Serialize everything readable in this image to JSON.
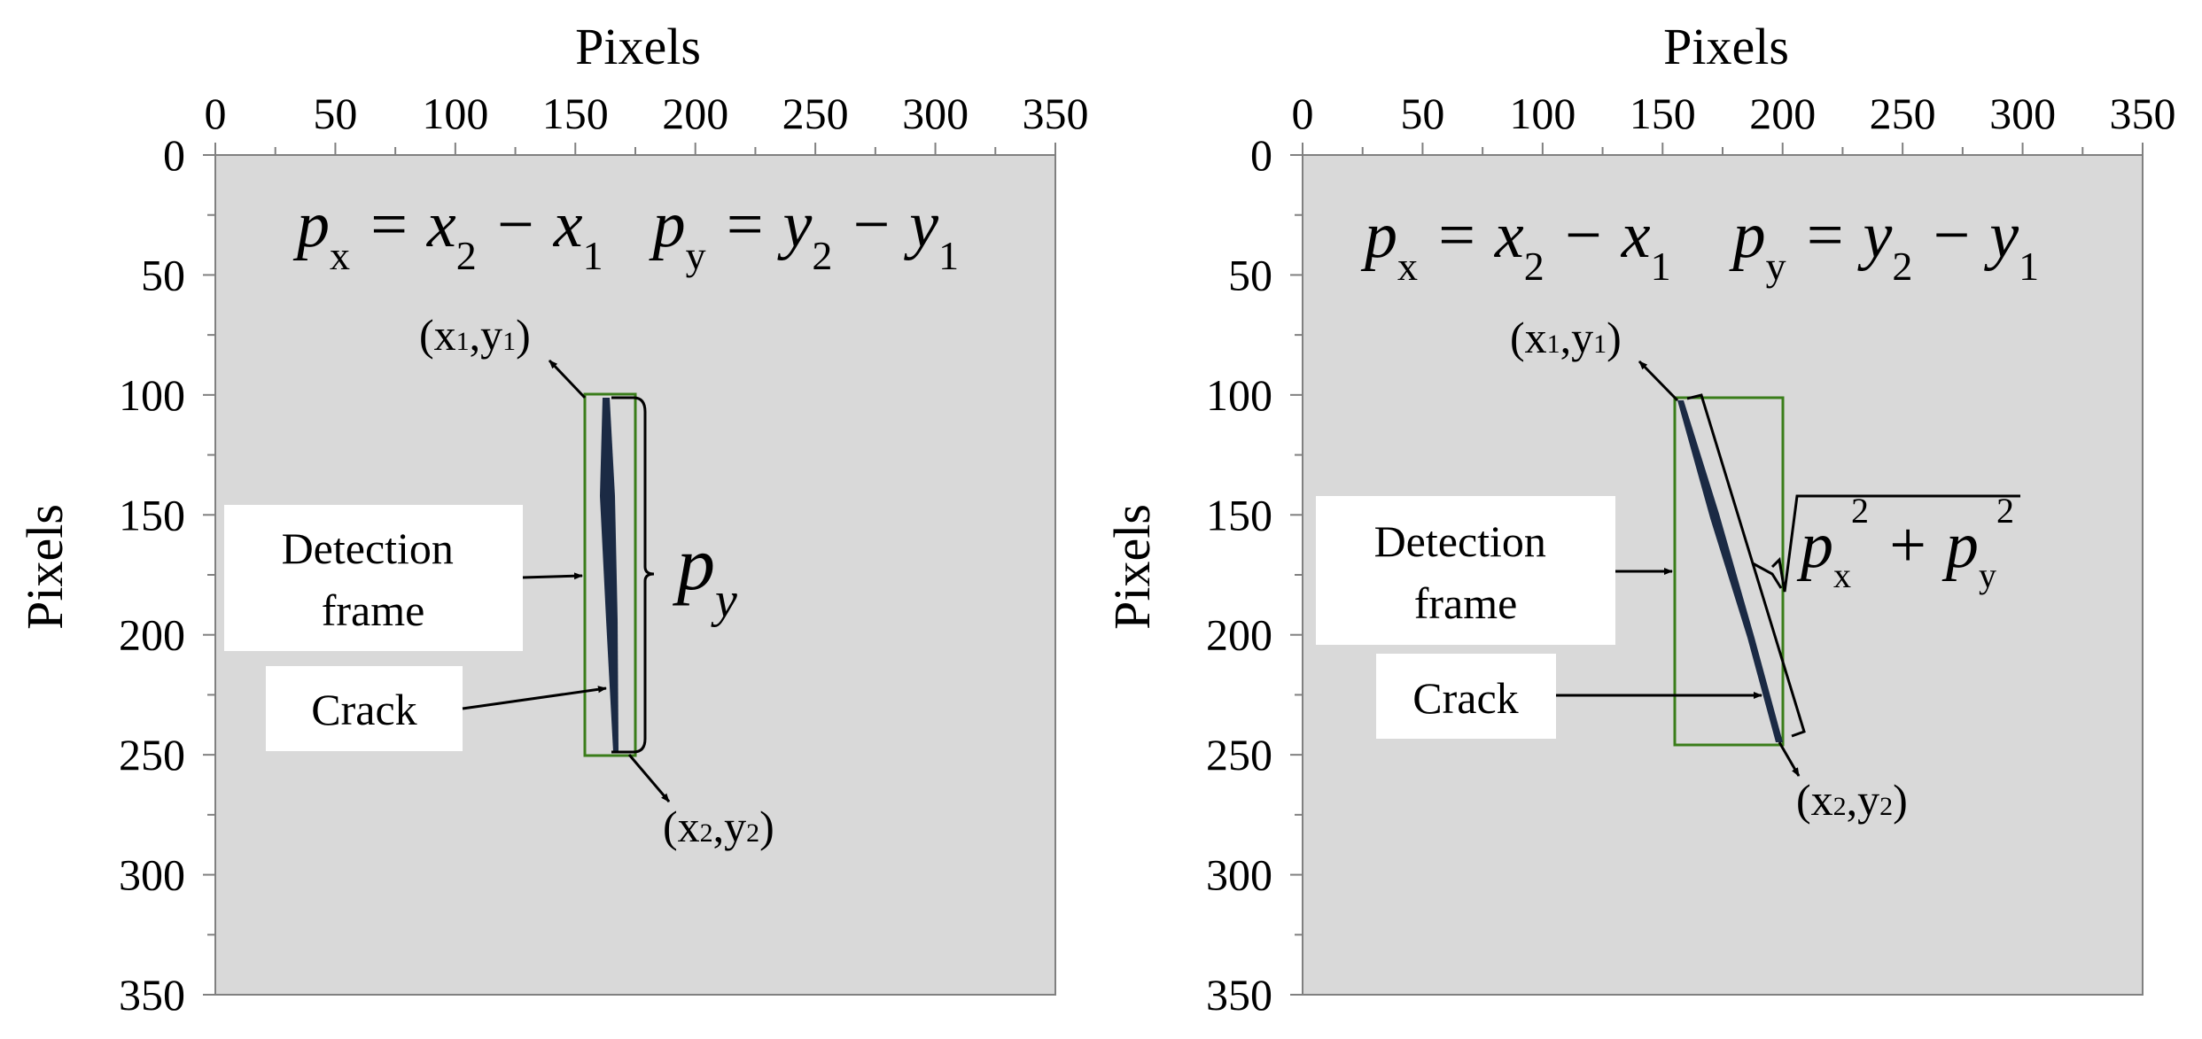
{
  "panels": [
    {
      "id": "left",
      "x_axis_label": "Pixels",
      "y_axis_label": "Pixels",
      "x_ticks": [
        0,
        50,
        100,
        150,
        200,
        250,
        300,
        350
      ],
      "y_ticks": [
        0,
        50,
        100,
        150,
        200,
        250,
        300,
        350
      ],
      "axis_range": [
        0,
        350
      ],
      "formula": {
        "px": "p",
        "px_sub": "x",
        "eq1": " = x",
        "sub2": "2",
        "minus": " − x",
        "sub1": "1",
        "py": "p",
        "py_sub": "y",
        "eq2": " = y",
        "sub2b": "2",
        "minusb": " − y",
        "sub1b": "1"
      },
      "start_label": {
        "open": "(x",
        "sub_a": "1",
        "comma": ",y",
        "sub_b": "1",
        "close": ")"
      },
      "end_label": {
        "open": "(x",
        "sub_a": "2",
        "comma": ",y",
        "sub_b": "2",
        "close": ")"
      },
      "detection_label": [
        "Detection",
        "frame"
      ],
      "crack_label": "Crack",
      "length_label": {
        "base": "p",
        "sub": "y"
      },
      "frame": {
        "x1": 155,
        "y1": 100,
        "x2": 175,
        "y2": 250
      },
      "crack": {
        "x1": 162,
        "y1": 101,
        "x2": 166,
        "y2": 249
      }
    },
    {
      "id": "right",
      "x_axis_label": "Pixels",
      "y_axis_label": "Pixels",
      "x_ticks": [
        0,
        50,
        100,
        150,
        200,
        250,
        300,
        350
      ],
      "y_ticks": [
        0,
        50,
        100,
        150,
        200,
        250,
        300,
        350
      ],
      "axis_range": [
        0,
        350
      ],
      "formula": {
        "px": "p",
        "px_sub": "x",
        "eq1": " = x",
        "sub2": "2",
        "minus": " − x",
        "sub1": "1",
        "py": "p",
        "py_sub": "y",
        "eq2": " = y",
        "sub2b": "2",
        "minusb": " − y",
        "sub1b": "1"
      },
      "start_label": {
        "open": "(x",
        "sub_a": "1",
        "comma": ",y",
        "sub_b": "1",
        "close": ")"
      },
      "end_label": {
        "open": "(x",
        "sub_a": "2",
        "comma": ",y",
        "sub_b": "2",
        "close": ")"
      },
      "detection_label": [
        "Detection",
        "frame"
      ],
      "crack_label": "Crack",
      "length_label": {
        "a": "p",
        "a_sub": "x",
        "a_sup": "2",
        "plus": " + p",
        "b_sub": "y",
        "b_sup": "2"
      },
      "frame": {
        "x1": 155,
        "y1": 100,
        "x2": 200,
        "y2": 245
      },
      "crack": {
        "x1": 157,
        "y1": 102,
        "x2": 199,
        "y2": 244
      }
    }
  ],
  "colors": {
    "plot_bg": "#d9d9d9",
    "frame": "#3a7d1a",
    "crack": "#1b2a44",
    "axis": "#808080"
  }
}
